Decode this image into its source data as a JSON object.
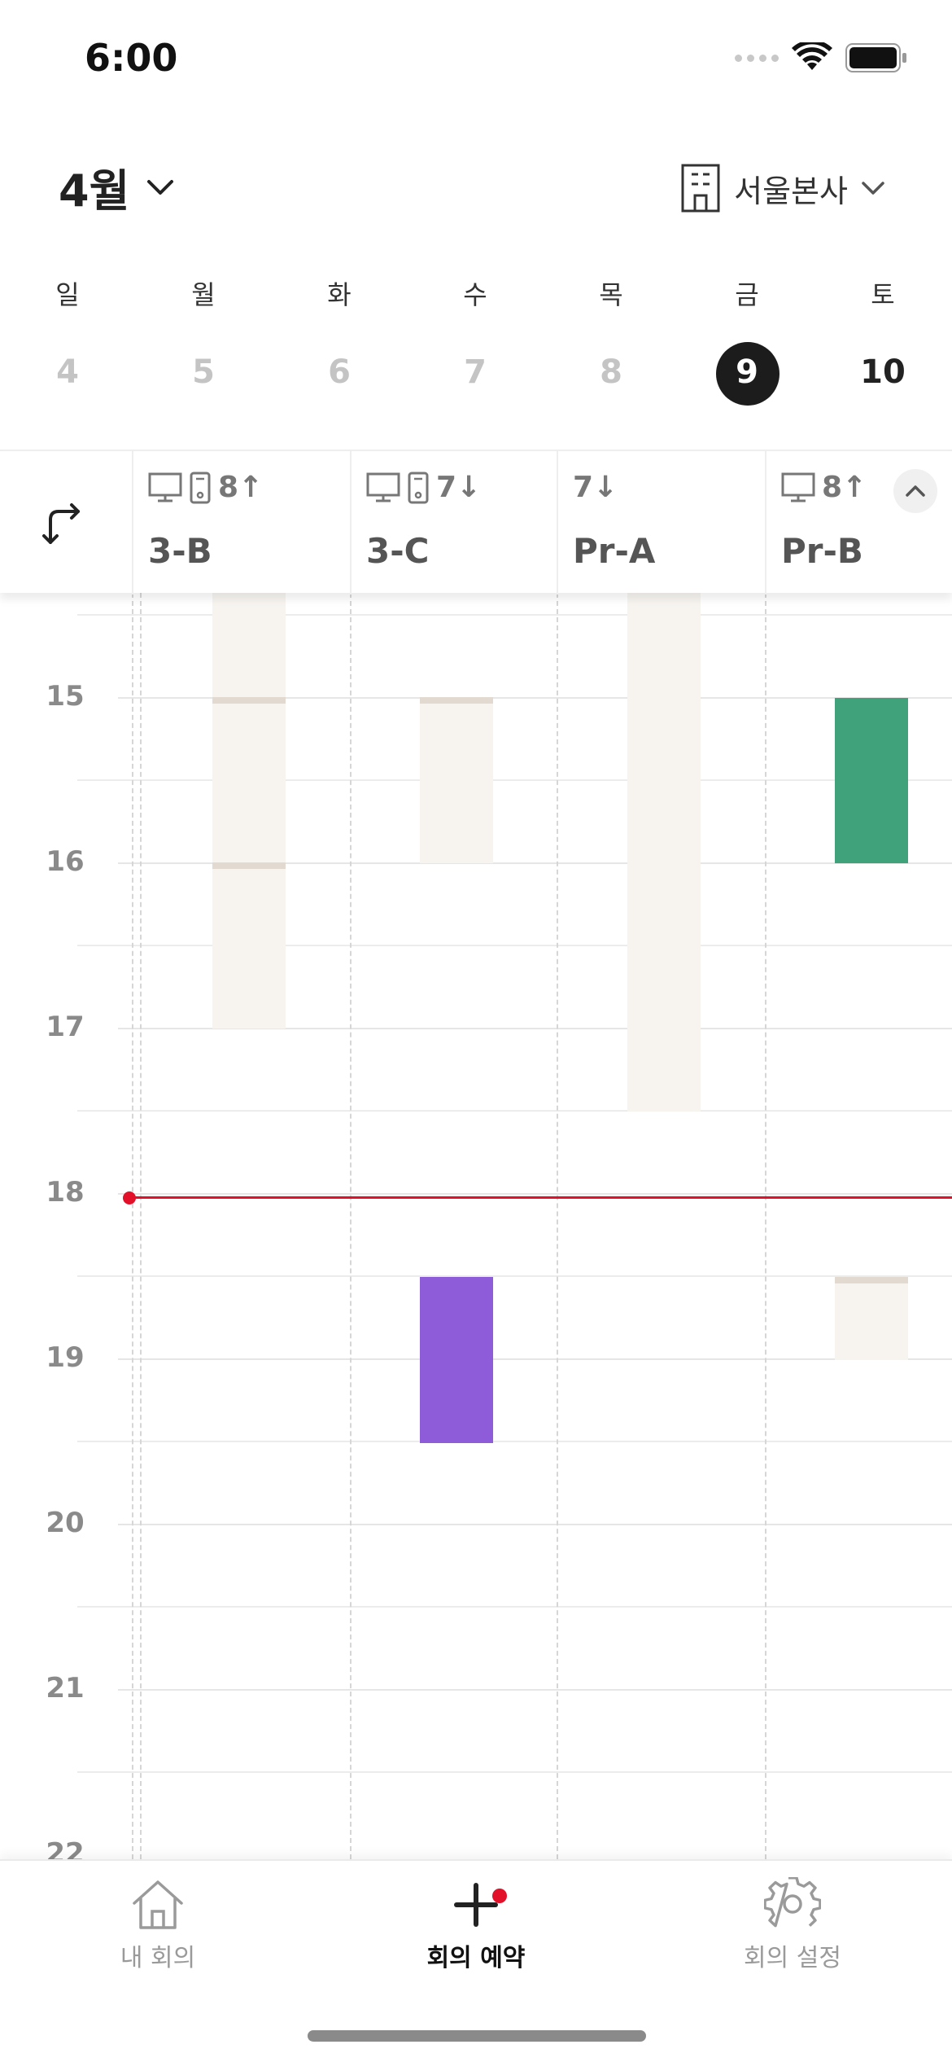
{
  "status": {
    "time": "6:00"
  },
  "header": {
    "month": "4월",
    "office": "서울본사"
  },
  "week": {
    "weekdays": [
      "일",
      "월",
      "화",
      "수",
      "목",
      "금",
      "토"
    ],
    "days": [
      "4",
      "5",
      "6",
      "7",
      "8",
      "9",
      "10"
    ],
    "selected_index": 5
  },
  "rooms": [
    {
      "name": "3-B",
      "meta": "8↑",
      "monitor": true,
      "phone": true
    },
    {
      "name": "3-C",
      "meta": "7↓",
      "monitor": true,
      "phone": true
    },
    {
      "name": "Pr-A",
      "meta": "7↓",
      "monitor": false,
      "phone": false
    },
    {
      "name": "Pr-B",
      "meta": "8↑",
      "monitor": true,
      "phone": false
    }
  ],
  "hours": [
    "15",
    "16",
    "17",
    "18",
    "19",
    "20",
    "21",
    "22"
  ],
  "tabs": {
    "my_meetings": "내 회의",
    "reserve": "회의 예약",
    "settings": "회의 설정"
  },
  "colors": {
    "now_line": "#e3102a",
    "booking_green": "#3fa27a",
    "booking_purple": "#8e5bd9",
    "available": "#f7f4f0"
  },
  "icons": {
    "swap": "swap-arrows-icon",
    "monitor": "monitor-icon",
    "phone": "phone-icon",
    "building": "building-icon",
    "home": "home-icon",
    "plus": "plus-icon",
    "gear": "gear-icon"
  }
}
